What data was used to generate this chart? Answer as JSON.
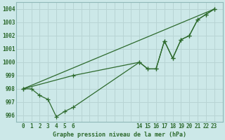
{
  "title": "Graphe pression niveau de la mer (hPa)",
  "bg_color": "#cce8e8",
  "grid_color": "#b8d4d4",
  "line_color": "#2d6a2d",
  "ylim": [
    995.5,
    1004.5
  ],
  "yticks": [
    996,
    997,
    998,
    999,
    1000,
    1001,
    1002,
    1003,
    1004
  ],
  "xticks_left": [
    0,
    1,
    2,
    3,
    4,
    5,
    6
  ],
  "xticks_right": [
    14,
    15,
    16,
    17,
    18,
    19,
    20,
    21,
    22,
    23
  ],
  "xlim": [
    -0.8,
    24.0
  ],
  "series1_x": [
    0,
    1,
    2,
    3,
    4,
    5,
    6,
    14,
    15,
    16,
    17,
    18,
    19,
    20,
    21,
    22,
    23
  ],
  "series1_y": [
    998.0,
    998.0,
    997.5,
    997.2,
    995.9,
    996.3,
    996.6,
    1000.0,
    999.5,
    999.5,
    1001.6,
    1000.3,
    1001.7,
    1002.0,
    1003.2,
    1003.6,
    1004.0
  ],
  "series2_x": [
    0,
    6,
    14,
    15,
    16,
    17,
    18,
    19,
    20,
    21,
    22,
    23
  ],
  "series2_y": [
    998.0,
    999.0,
    1000.0,
    999.5,
    999.5,
    1001.6,
    1000.3,
    1001.7,
    1002.0,
    1003.2,
    1003.6,
    1004.0
  ],
  "series3_x": [
    0,
    23
  ],
  "series3_y": [
    998.0,
    1004.0
  ]
}
